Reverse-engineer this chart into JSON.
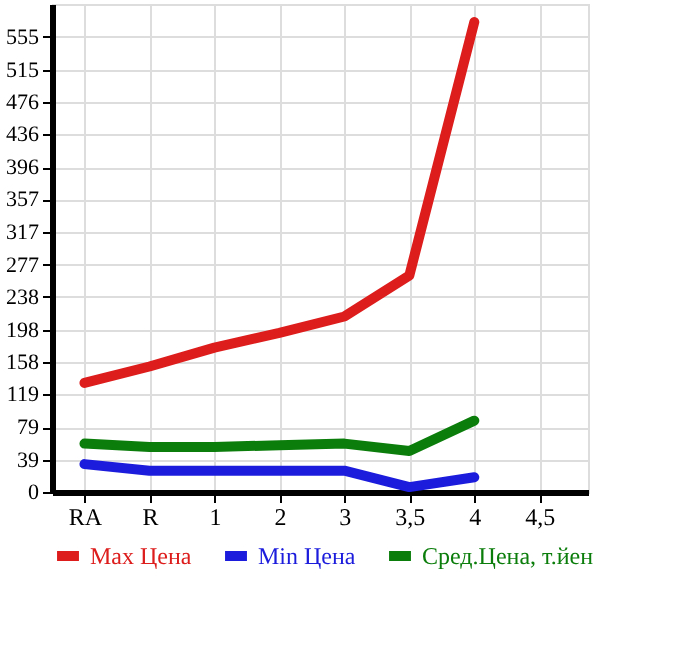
{
  "chart_data": {
    "type": "line",
    "categories": [
      "RA",
      "R",
      "1",
      "2",
      "3",
      "3,5",
      "4",
      "4,5"
    ],
    "series": [
      {
        "name": "Max Цена",
        "color": "#dd1c1c",
        "values": [
          133,
          153,
          176,
          194,
          214,
          264,
          573,
          null
        ]
      },
      {
        "name": "Min Цена",
        "color": "#1c1cdd",
        "values": [
          34,
          26,
          26,
          26,
          26,
          6,
          18,
          null
        ]
      },
      {
        "name": "Сред.Цена, т.йен",
        "color": "#0b7d0b",
        "values": [
          59,
          55,
          55,
          57,
          59,
          50,
          87,
          null
        ]
      }
    ],
    "ylim": [
      0,
      595
    ],
    "yticks": [
      0,
      39,
      79,
      119,
      158,
      198,
      238,
      277,
      317,
      357,
      396,
      436,
      476,
      515,
      555
    ],
    "grid": true,
    "legend": "bottom",
    "marker": "none",
    "line_style": "solid"
  }
}
